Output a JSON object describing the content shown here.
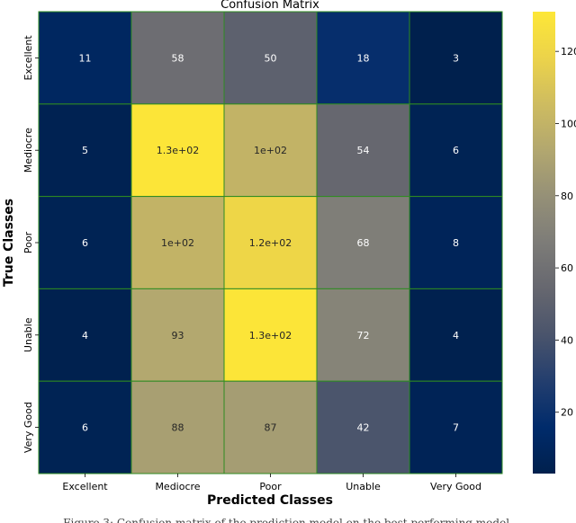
{
  "chart_data": {
    "type": "heatmap",
    "title": "Confusion Matrix",
    "xlabel": "Predicted Classes",
    "ylabel": "True Classes",
    "x_categories": [
      "Excellent",
      "Mediocre",
      "Poor",
      "Unable",
      "Very Good"
    ],
    "y_categories": [
      "Excellent",
      "Mediocre",
      "Poor",
      "Unable",
      "Very Good"
    ],
    "values": [
      [
        11,
        58,
        50,
        18,
        3
      ],
      [
        5,
        130,
        100,
        54,
        6
      ],
      [
        6,
        100,
        120,
        68,
        8
      ],
      [
        4,
        93,
        130,
        72,
        4
      ],
      [
        6,
        88,
        87,
        42,
        7
      ]
    ],
    "annotations": [
      [
        "11",
        "58",
        "50",
        "18",
        "3"
      ],
      [
        "5",
        "1.3e+02",
        "1e+02",
        "54",
        "6"
      ],
      [
        "6",
        "1e+02",
        "1.2e+02",
        "68",
        "8"
      ],
      [
        "4",
        "93",
        "1.3e+02",
        "72",
        "4"
      ],
      [
        "6",
        "88",
        "87",
        "42",
        "7"
      ]
    ],
    "colormap": "cividis",
    "vmin": 3,
    "vmax": 131,
    "colorbar_ticks": [
      20,
      40,
      60,
      80,
      100,
      120
    ],
    "cell_border_color": "#2e8b22"
  },
  "caption": "Figure 3: Confusion matrix of the prediction model on the best performing model."
}
